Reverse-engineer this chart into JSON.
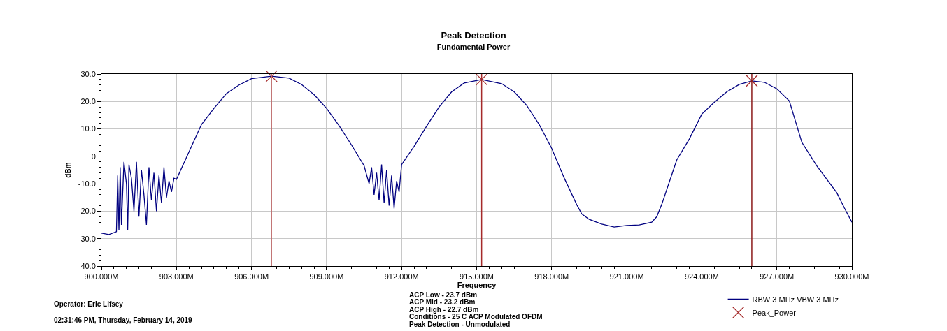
{
  "chart_data": {
    "type": "line",
    "title": "Peak Detection",
    "subtitle": "Fundamental Power",
    "xlabel": "Frequency",
    "ylabel": "dBm",
    "series": [
      {
        "name": "RBW 3 MHz VBW 3 MHz",
        "color": "#000080",
        "x": [
          900,
          900.3,
          900.6,
          900.65,
          900.7,
          900.75,
          900.8,
          900.9,
          901.0,
          901.05,
          901.1,
          901.2,
          901.3,
          901.4,
          901.5,
          901.6,
          901.7,
          901.8,
          901.9,
          902.0,
          902.1,
          902.2,
          902.3,
          902.4,
          902.5,
          902.6,
          902.7,
          902.8,
          902.9,
          903.0,
          903.5,
          904,
          904.5,
          905,
          905.5,
          906,
          906.8,
          907.5,
          908,
          908.5,
          909,
          909.5,
          910,
          910.5,
          910.7,
          910.8,
          910.9,
          911.0,
          911.1,
          911.2,
          911.3,
          911.4,
          911.5,
          911.6,
          911.7,
          911.8,
          911.9,
          912,
          912.5,
          913,
          913.5,
          914,
          914.5,
          915.2,
          916,
          916.5,
          917,
          917.5,
          918,
          918.5,
          919,
          919.2,
          919.5,
          920,
          920.5,
          921,
          921.5,
          922,
          922.2,
          922.4,
          923,
          923.5,
          924,
          924.5,
          925,
          925.5,
          926,
          926.5,
          927,
          927.5,
          928,
          928.6,
          929.4,
          929.7,
          930
        ],
        "values": [
          -28,
          -28.5,
          -27.5,
          -7,
          -27,
          -4,
          -25,
          -2,
          -10,
          -27,
          -3,
          -8,
          -20,
          -2,
          -22,
          -5,
          -14,
          -25,
          -4,
          -16,
          -6,
          -20,
          -7,
          -17,
          -4,
          -15,
          -9,
          -13,
          -8,
          -8.4,
          1.6,
          11.6,
          17.5,
          22.9,
          26,
          28.3,
          29.2,
          28.5,
          26.2,
          22.5,
          17.5,
          11.2,
          4.1,
          -3.4,
          -10,
          -4,
          -14,
          -6,
          -16,
          -3,
          -17,
          -5,
          -18,
          -7,
          -19,
          -9,
          -13,
          -3,
          3.6,
          11,
          18,
          23.5,
          26.7,
          28,
          26.5,
          23.5,
          18.6,
          11.6,
          2.9,
          -7.9,
          -17.6,
          -21,
          -23,
          -24.7,
          -25.8,
          -25.2,
          -25,
          -24,
          -22,
          -17.5,
          -1.3,
          6.3,
          15.4,
          19.7,
          23.5,
          26.2,
          27.5,
          27,
          24.6,
          20.2,
          5.1,
          -3.5,
          -13.3,
          -18.8,
          -24
        ]
      },
      {
        "name": "Peak_Power",
        "color": "#a52a2a",
        "type": "scatter",
        "marker": "cross",
        "x": [
          906.8,
          915.2,
          926.0
        ],
        "values": [
          29.2,
          28,
          27.5
        ]
      }
    ],
    "ref_lines": [
      {
        "axis": "x",
        "value": 906.8,
        "color": "#c07070"
      },
      {
        "axis": "x",
        "value": 915.2,
        "color": "#a52a2a"
      },
      {
        "axis": "x",
        "value": 926.0,
        "color": "#8b1a1a"
      }
    ],
    "xlim": [
      900,
      930
    ],
    "xticks": [
      {
        "value": 900,
        "label": "900.000M"
      },
      {
        "value": 903,
        "label": "903.000M"
      },
      {
        "value": 906,
        "label": "906.000M"
      },
      {
        "value": 909,
        "label": "909.000M"
      },
      {
        "value": 912,
        "label": "912.000M"
      },
      {
        "value": 915,
        "label": "915.000M"
      },
      {
        "value": 918,
        "label": "918.000M"
      },
      {
        "value": 921,
        "label": "921.000M"
      },
      {
        "value": 924,
        "label": "924.000M"
      },
      {
        "value": 927,
        "label": "927.000M"
      },
      {
        "value": 930,
        "label": "930.000M"
      }
    ],
    "ylim": [
      -40,
      30
    ],
    "yticks": [
      {
        "value": -40,
        "label": "-40.0"
      },
      {
        "value": -30,
        "label": "-30.0"
      },
      {
        "value": -20,
        "label": "-20.0"
      },
      {
        "value": -10,
        "label": "-10.0"
      },
      0,
      {
        "value": 10,
        "label": "10.0"
      },
      {
        "value": 20,
        "label": "20.0"
      },
      {
        "value": 30,
        "label": "30.0"
      }
    ],
    "grid": true,
    "legend": "bottom right",
    "annotations": [
      "ACP Low - 23.7 dBm",
      "ACP Mid - 23.2 dBm",
      "ACP High - 22.7 dBm",
      "Conditions - 25 C ACP Modulated OFDM",
      "Peak Detection - Unmodulated",
      "Operator: Eric Lifsey",
      "02:31:46 PM, Thursday, February 14, 2019"
    ]
  }
}
